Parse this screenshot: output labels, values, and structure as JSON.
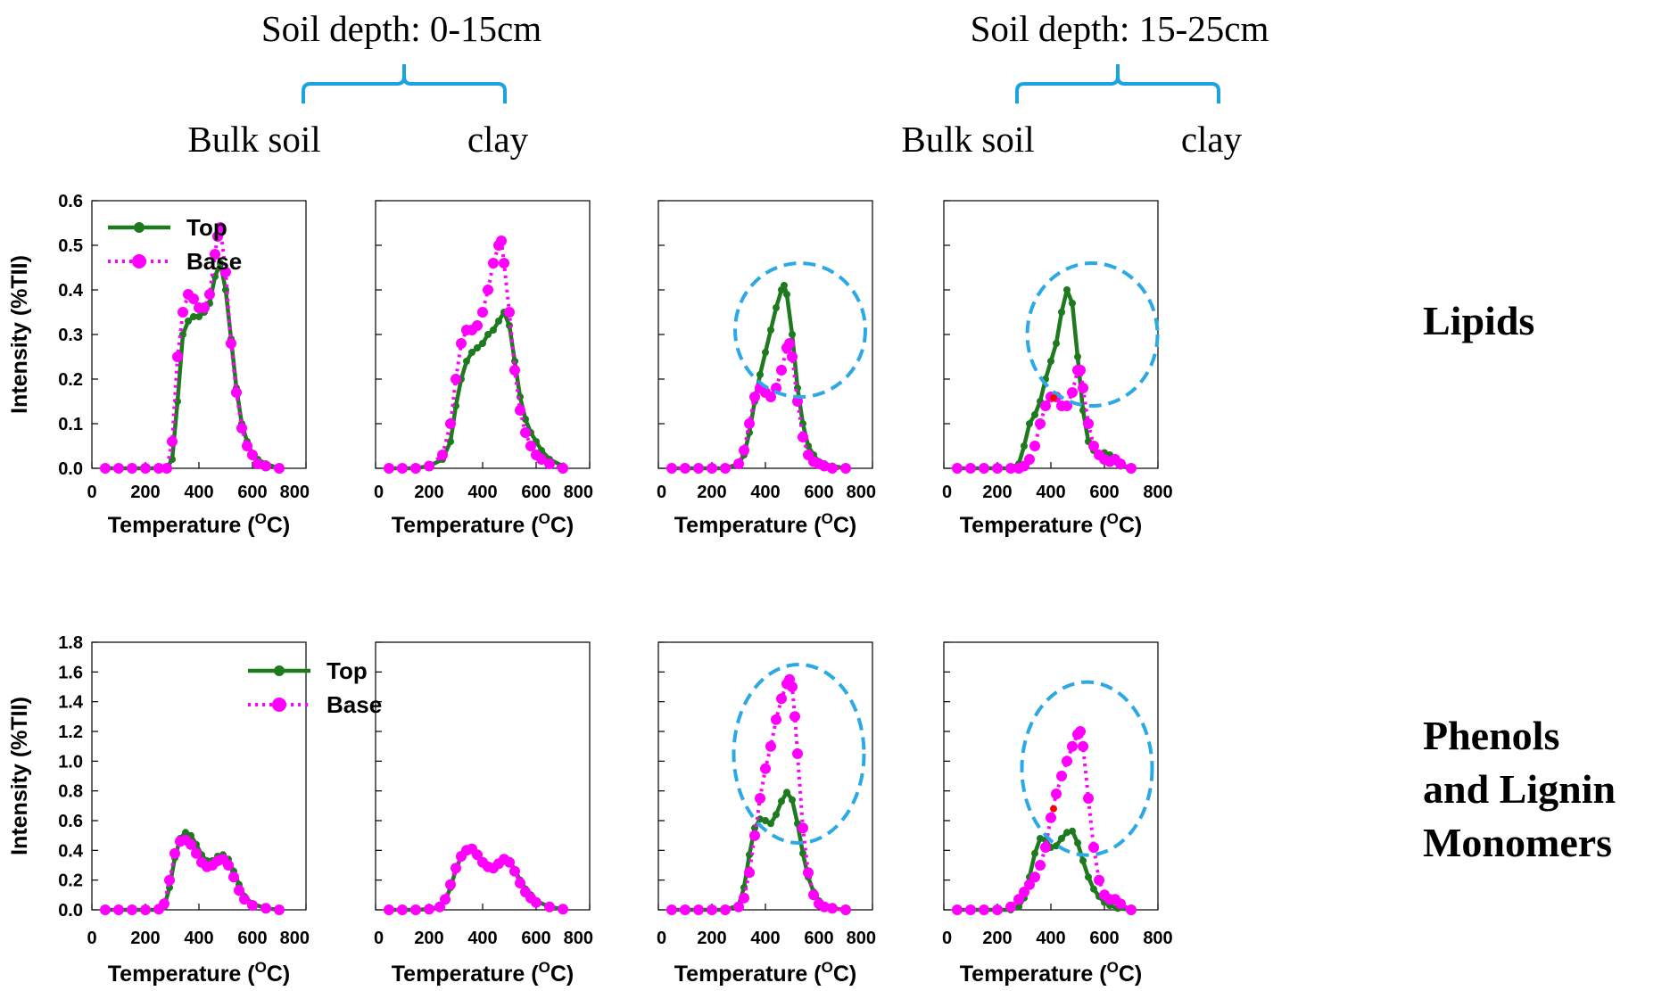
{
  "header": {
    "groups": [
      {
        "depth_label": "Soil depth: 0-15cm",
        "fractions": [
          "Bulk soil",
          "clay"
        ]
      },
      {
        "depth_label": "Soil depth: 15-25cm",
        "fractions": [
          "Bulk soil",
          "clay"
        ]
      }
    ]
  },
  "rows": [
    {
      "label_lines": [
        "Lipids"
      ],
      "ylabel": "Intensity (%TII)",
      "yticks": [
        "0.0",
        "0.1",
        "0.2",
        "0.3",
        "0.4",
        "0.5",
        "0.6"
      ]
    },
    {
      "label_lines": [
        "Phenols",
        "and Lignin",
        "Monomers"
      ],
      "ylabel": "Intensity (%TII)",
      "yticks": [
        "0.0",
        "0.2",
        "0.4",
        "0.6",
        "0.8",
        "1.0",
        "1.2",
        "1.4",
        "1.6",
        "1.8"
      ]
    }
  ],
  "xlabel_prefix": "Temperature (",
  "xlabel_sup": "O",
  "xlabel_suffix": "C)",
  "xticks": [
    "0",
    "200",
    "400",
    "600",
    "800"
  ],
  "legend": {
    "top": "Top",
    "base": "Base"
  },
  "colors": {
    "top": "#1e7a1e",
    "base": "#ff00ff",
    "bracket": "#1aa3e0",
    "ellipse": "#2ba8e6",
    "marker": "#ff0000"
  },
  "chart_data": [
    {
      "type": "line",
      "row": 0,
      "panel": 0,
      "xlabel": "Temperature (OC)",
      "ylabel": "Intensity (%TII)",
      "xlim": [
        0,
        800
      ],
      "ylim": [
        0,
        0.6
      ],
      "legend": "top-left",
      "series": [
        {
          "name": "Top",
          "x": [
            50,
            100,
            150,
            200,
            250,
            280,
            300,
            320,
            340,
            360,
            380,
            400,
            420,
            440,
            460,
            480,
            500,
            520,
            540,
            560,
            580,
            600,
            620,
            650,
            700
          ],
          "y": [
            0,
            0,
            0,
            0,
            0,
            0,
            0.02,
            0.15,
            0.3,
            0.33,
            0.34,
            0.34,
            0.35,
            0.37,
            0.43,
            0.46,
            0.4,
            0.29,
            0.18,
            0.1,
            0.06,
            0.03,
            0.02,
            0.01,
            0
          ]
        },
        {
          "name": "Base",
          "x": [
            50,
            100,
            150,
            200,
            250,
            280,
            300,
            320,
            340,
            360,
            380,
            400,
            420,
            440,
            460,
            470,
            480,
            500,
            520,
            540,
            560,
            580,
            600,
            620,
            650,
            700
          ],
          "y": [
            0,
            0,
            0,
            0,
            0,
            0,
            0.06,
            0.25,
            0.35,
            0.39,
            0.38,
            0.36,
            0.36,
            0.39,
            0.48,
            0.52,
            0.54,
            0.44,
            0.28,
            0.17,
            0.09,
            0.05,
            0.03,
            0.01,
            0.005,
            0
          ]
        }
      ]
    },
    {
      "type": "line",
      "row": 0,
      "panel": 1,
      "xlabel": "Temperature (OC)",
      "xlim": [
        0,
        800
      ],
      "ylim": [
        0,
        0.6
      ],
      "series": [
        {
          "name": "Top",
          "x": [
            50,
            100,
            150,
            200,
            250,
            280,
            300,
            320,
            340,
            360,
            380,
            400,
            420,
            440,
            460,
            480,
            500,
            520,
            540,
            560,
            580,
            600,
            620,
            650,
            700
          ],
          "y": [
            0,
            0,
            0,
            0.005,
            0.02,
            0.06,
            0.14,
            0.2,
            0.24,
            0.26,
            0.27,
            0.28,
            0.3,
            0.31,
            0.33,
            0.35,
            0.32,
            0.24,
            0.16,
            0.11,
            0.08,
            0.06,
            0.04,
            0.02,
            0.005
          ]
        },
        {
          "name": "Base",
          "x": [
            50,
            100,
            150,
            200,
            250,
            280,
            300,
            320,
            340,
            360,
            380,
            400,
            420,
            440,
            460,
            470,
            480,
            500,
            520,
            540,
            560,
            580,
            600,
            620,
            650,
            700
          ],
          "y": [
            0,
            0,
            0,
            0.005,
            0.03,
            0.1,
            0.2,
            0.28,
            0.31,
            0.31,
            0.32,
            0.35,
            0.4,
            0.46,
            0.5,
            0.51,
            0.46,
            0.35,
            0.22,
            0.13,
            0.08,
            0.05,
            0.03,
            0.02,
            0.01,
            0
          ]
        }
      ]
    },
    {
      "type": "line",
      "row": 0,
      "panel": 2,
      "xlabel": "Temperature (OC)",
      "xlim": [
        0,
        800
      ],
      "ylim": [
        0,
        0.6
      ],
      "series": [
        {
          "name": "Top",
          "x": [
            50,
            100,
            150,
            200,
            250,
            300,
            320,
            340,
            360,
            380,
            400,
            420,
            440,
            460,
            470,
            480,
            500,
            520,
            540,
            560,
            580,
            600,
            620,
            650,
            700
          ],
          "y": [
            0,
            0,
            0,
            0,
            0,
            0.01,
            0.03,
            0.08,
            0.15,
            0.21,
            0.26,
            0.31,
            0.36,
            0.4,
            0.41,
            0.39,
            0.3,
            0.18,
            0.1,
            0.05,
            0.03,
            0.015,
            0.01,
            0.005,
            0
          ]
        },
        {
          "name": "Base",
          "x": [
            50,
            100,
            150,
            200,
            250,
            300,
            320,
            340,
            360,
            380,
            400,
            420,
            440,
            460,
            480,
            490,
            500,
            520,
            540,
            560,
            580,
            600,
            620,
            650,
            700
          ],
          "y": [
            0,
            0,
            0,
            0,
            0,
            0.01,
            0.04,
            0.1,
            0.16,
            0.18,
            0.17,
            0.16,
            0.18,
            0.22,
            0.27,
            0.28,
            0.25,
            0.15,
            0.07,
            0.03,
            0.015,
            0.01,
            0.005,
            0,
            0
          ]
        }
      ]
    },
    {
      "type": "line",
      "row": 0,
      "panel": 3,
      "xlabel": "Temperature (OC)",
      "xlim": [
        0,
        800
      ],
      "ylim": [
        0,
        0.6
      ],
      "series": [
        {
          "name": "Top",
          "x": [
            50,
            100,
            150,
            200,
            250,
            280,
            300,
            320,
            340,
            360,
            380,
            400,
            420,
            440,
            460,
            480,
            500,
            520,
            540,
            560,
            580,
            600,
            620,
            640,
            660,
            700
          ],
          "y": [
            0,
            0,
            0,
            0,
            0,
            0.01,
            0.05,
            0.1,
            0.12,
            0.15,
            0.2,
            0.24,
            0.28,
            0.35,
            0.4,
            0.37,
            0.25,
            0.13,
            0.06,
            0.04,
            0.03,
            0.035,
            0.03,
            0.015,
            0.005,
            0
          ]
        },
        {
          "name": "Base",
          "x": [
            50,
            100,
            150,
            200,
            250,
            280,
            300,
            320,
            340,
            360,
            380,
            400,
            420,
            440,
            460,
            480,
            500,
            510,
            520,
            540,
            560,
            580,
            600,
            620,
            640,
            660,
            700
          ],
          "y": [
            0,
            0,
            0,
            0,
            0,
            0,
            0.005,
            0.02,
            0.05,
            0.1,
            0.14,
            0.16,
            0.16,
            0.14,
            0.14,
            0.17,
            0.22,
            0.22,
            0.18,
            0.1,
            0.05,
            0.03,
            0.02,
            0.015,
            0.02,
            0.01,
            0
          ]
        }
      ]
    },
    {
      "type": "line",
      "row": 1,
      "panel": 0,
      "xlabel": "Temperature (OC)",
      "ylabel": "Intensity (%TII)",
      "xlim": [
        0,
        800
      ],
      "ylim": [
        0,
        1.8
      ],
      "legend": "top-center",
      "series": [
        {
          "name": "Top",
          "x": [
            50,
            100,
            150,
            200,
            250,
            270,
            290,
            310,
            330,
            350,
            370,
            390,
            410,
            430,
            450,
            470,
            490,
            510,
            530,
            550,
            570,
            600,
            650,
            700
          ],
          "y": [
            0,
            0,
            0,
            0,
            0,
            0.02,
            0.15,
            0.35,
            0.48,
            0.52,
            0.5,
            0.44,
            0.37,
            0.33,
            0.33,
            0.36,
            0.37,
            0.34,
            0.26,
            0.17,
            0.09,
            0.04,
            0.01,
            0
          ]
        },
        {
          "name": "Base",
          "x": [
            50,
            100,
            150,
            200,
            250,
            270,
            290,
            310,
            330,
            350,
            370,
            390,
            410,
            430,
            450,
            470,
            490,
            510,
            530,
            550,
            570,
            600,
            650,
            700
          ],
          "y": [
            0,
            0,
            0,
            0,
            0.005,
            0.04,
            0.2,
            0.38,
            0.46,
            0.47,
            0.44,
            0.38,
            0.32,
            0.29,
            0.3,
            0.33,
            0.34,
            0.3,
            0.22,
            0.13,
            0.07,
            0.03,
            0.01,
            0
          ]
        }
      ]
    },
    {
      "type": "line",
      "row": 1,
      "panel": 1,
      "xlabel": "Temperature (OC)",
      "xlim": [
        0,
        800
      ],
      "ylim": [
        0,
        1.8
      ],
      "series": [
        {
          "name": "Top",
          "x": [
            50,
            100,
            150,
            200,
            240,
            260,
            280,
            300,
            320,
            340,
            360,
            380,
            400,
            420,
            440,
            460,
            480,
            500,
            520,
            540,
            560,
            580,
            600,
            650,
            700
          ],
          "y": [
            0,
            0,
            0,
            0.005,
            0.02,
            0.06,
            0.15,
            0.27,
            0.36,
            0.41,
            0.42,
            0.38,
            0.33,
            0.3,
            0.29,
            0.32,
            0.35,
            0.33,
            0.27,
            0.2,
            0.14,
            0.1,
            0.06,
            0.02,
            0.005
          ]
        },
        {
          "name": "Base",
          "x": [
            50,
            100,
            150,
            200,
            240,
            260,
            280,
            300,
            320,
            340,
            360,
            380,
            400,
            420,
            440,
            460,
            480,
            500,
            520,
            540,
            560,
            580,
            600,
            650,
            700
          ],
          "y": [
            0,
            0,
            0,
            0.005,
            0.02,
            0.07,
            0.17,
            0.28,
            0.36,
            0.4,
            0.41,
            0.37,
            0.32,
            0.29,
            0.28,
            0.31,
            0.34,
            0.32,
            0.26,
            0.18,
            0.12,
            0.08,
            0.05,
            0.02,
            0.005
          ]
        }
      ]
    },
    {
      "type": "line",
      "row": 1,
      "panel": 2,
      "xlabel": "Temperature (OC)",
      "xlim": [
        0,
        800
      ],
      "ylim": [
        0,
        1.8
      ],
      "series": [
        {
          "name": "Top",
          "x": [
            50,
            100,
            150,
            200,
            250,
            300,
            320,
            340,
            360,
            380,
            400,
            420,
            440,
            460,
            480,
            500,
            520,
            540,
            560,
            580,
            600,
            620,
            650,
            700
          ],
          "y": [
            0,
            0,
            0,
            0,
            0,
            0.03,
            0.15,
            0.37,
            0.55,
            0.61,
            0.6,
            0.58,
            0.64,
            0.73,
            0.79,
            0.74,
            0.58,
            0.38,
            0.22,
            0.12,
            0.06,
            0.03,
            0.01,
            0
          ]
        },
        {
          "name": "Base",
          "x": [
            50,
            100,
            150,
            200,
            250,
            300,
            320,
            340,
            360,
            380,
            400,
            420,
            440,
            460,
            480,
            490,
            500,
            510,
            520,
            540,
            560,
            580,
            600,
            620,
            650,
            700
          ],
          "y": [
            0,
            0,
            0,
            0,
            0,
            0.02,
            0.08,
            0.25,
            0.5,
            0.75,
            0.95,
            1.1,
            1.28,
            1.42,
            1.52,
            1.55,
            1.5,
            1.3,
            1.05,
            0.55,
            0.25,
            0.1,
            0.04,
            0.02,
            0.01,
            0
          ]
        }
      ]
    },
    {
      "type": "line",
      "row": 1,
      "panel": 3,
      "xlabel": "Temperature (OC)",
      "xlim": [
        0,
        800
      ],
      "ylim": [
        0,
        1.8
      ],
      "series": [
        {
          "name": "Top",
          "x": [
            50,
            100,
            150,
            200,
            250,
            280,
            300,
            320,
            340,
            360,
            380,
            400,
            420,
            440,
            460,
            480,
            500,
            520,
            540,
            560,
            580,
            600,
            620,
            650,
            700
          ],
          "y": [
            0,
            0,
            0,
            0,
            0,
            0.02,
            0.08,
            0.22,
            0.38,
            0.48,
            0.47,
            0.42,
            0.43,
            0.48,
            0.52,
            0.53,
            0.45,
            0.33,
            0.22,
            0.14,
            0.09,
            0.05,
            0.03,
            0.01,
            0
          ]
        },
        {
          "name": "Base",
          "x": [
            50,
            100,
            150,
            200,
            250,
            280,
            300,
            320,
            340,
            360,
            380,
            400,
            420,
            440,
            460,
            480,
            500,
            510,
            520,
            540,
            560,
            580,
            600,
            620,
            640,
            660,
            700
          ],
          "y": [
            0,
            0,
            0,
            0,
            0.02,
            0.07,
            0.12,
            0.17,
            0.22,
            0.3,
            0.42,
            0.62,
            0.78,
            0.9,
            1.0,
            1.1,
            1.18,
            1.2,
            1.1,
            0.75,
            0.42,
            0.2,
            0.1,
            0.07,
            0.07,
            0.04,
            0
          ]
        }
      ]
    }
  ]
}
